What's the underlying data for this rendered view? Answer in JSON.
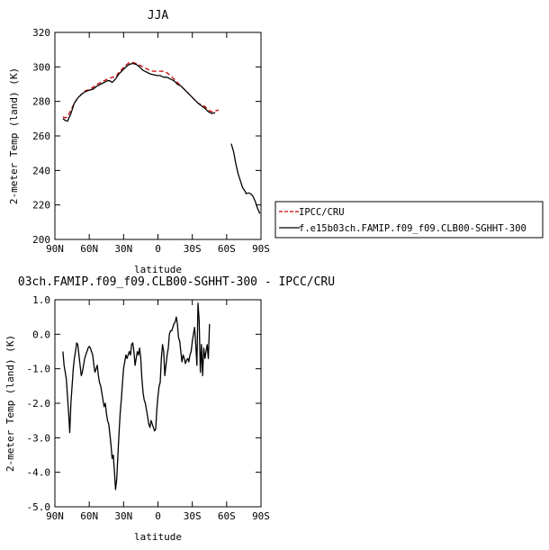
{
  "chart_data": [
    {
      "type": "line",
      "title": "JJA",
      "xlabel": "latitude",
      "ylabel": "2-meter Temp (land) (K)",
      "xlim": [
        90,
        -90
      ],
      "ylim": [
        200,
        320
      ],
      "x_ticks": [
        90,
        60,
        30,
        0,
        -30,
        -60,
        -90
      ],
      "x_tick_labels": [
        "90N",
        "60N",
        "30N",
        "0",
        "30S",
        "60S",
        "90S"
      ],
      "y_ticks": [
        200,
        220,
        240,
        260,
        280,
        300,
        320
      ],
      "y_tick_labels": [
        "200",
        "220",
        "240",
        "260",
        "280",
        "300",
        "320"
      ],
      "legend_position": "right",
      "series": [
        {
          "name": "IPCC/CRU",
          "color": "#cc0000",
          "dash": true,
          "points": [
            [
              83,
              271
            ],
            [
              81,
              270.5
            ],
            [
              79,
              271
            ],
            [
              76,
              275
            ],
            [
              73,
              279
            ],
            [
              70,
              282
            ],
            [
              67,
              284
            ],
            [
              64,
              286
            ],
            [
              60,
              287
            ],
            [
              57,
              288
            ],
            [
              53,
              290
            ],
            [
              50,
              291
            ],
            [
              47,
              292
            ],
            [
              44,
              293
            ],
            [
              40,
              294
            ],
            [
              37,
              294
            ],
            [
              34,
              297
            ],
            [
              31,
              299
            ],
            [
              28,
              301
            ],
            [
              25,
              302.5
            ],
            [
              22,
              302.5
            ],
            [
              19,
              302
            ],
            [
              16,
              301
            ],
            [
              13,
              300
            ],
            [
              10,
              299
            ],
            [
              7,
              298
            ],
            [
              4,
              297.5
            ],
            [
              1,
              297.5
            ],
            [
              -2,
              297.5
            ],
            [
              -5,
              297.5
            ],
            [
              -8,
              296.5
            ],
            [
              -11,
              295
            ],
            [
              -14,
              293
            ],
            [
              -17,
              291
            ],
            [
              -20,
              289
            ],
            [
              -23,
              287
            ],
            [
              -26,
              285
            ],
            [
              -29,
              283
            ],
            [
              -32,
              281
            ],
            [
              -35,
              279
            ],
            [
              -38,
              278
            ],
            [
              -41,
              277
            ],
            [
              -44,
              275
            ],
            [
              -47,
              274
            ],
            [
              -50,
              274.5
            ],
            [
              -53,
              275
            ]
          ]
        },
        {
          "name": "f.e15b03ch.FAMIP.f09_f09.CLB00-SGHHT-300",
          "color": "#000000",
          "dash": false,
          "points": [
            [
              83,
              270
            ],
            [
              81,
              269
            ],
            [
              79,
              268.5
            ],
            [
              76,
              273
            ],
            [
              73,
              279
            ],
            [
              70,
              282
            ],
            [
              67,
              284
            ],
            [
              64,
              285.5
            ],
            [
              60,
              286.5
            ],
            [
              57,
              287
            ],
            [
              53,
              289
            ],
            [
              50,
              290
            ],
            [
              47,
              291
            ],
            [
              44,
              292
            ],
            [
              42,
              292
            ],
            [
              40,
              291
            ],
            [
              37,
              293
            ],
            [
              34,
              296
            ],
            [
              31,
              298
            ],
            [
              28,
              300
            ],
            [
              25,
              301.5
            ],
            [
              22,
              302
            ],
            [
              19,
              301.5
            ],
            [
              16,
              300
            ],
            [
              13,
              298
            ],
            [
              10,
              297
            ],
            [
              7,
              296
            ],
            [
              4,
              295.5
            ],
            [
              1,
              295
            ],
            [
              -2,
              295
            ],
            [
              -5,
              294
            ],
            [
              -8,
              294
            ],
            [
              -11,
              293
            ],
            [
              -14,
              292
            ],
            [
              -17,
              290
            ],
            [
              -20,
              289
            ],
            [
              -23,
              287
            ],
            [
              -26,
              285
            ],
            [
              -29,
              283
            ],
            [
              -32,
              281
            ],
            [
              -35,
              279
            ],
            [
              -38,
              277.5
            ],
            [
              -41,
              276
            ],
            [
              -44,
              274
            ],
            [
              -47,
              273
            ],
            [
              -50,
              273.5
            ],
            [
              null,
              null
            ],
            [
              -64,
              255.5
            ],
            [
              -66,
              251
            ],
            [
              -68,
              244
            ],
            [
              -70,
              238
            ],
            [
              -72,
              234
            ],
            [
              -74,
              230
            ],
            [
              -76,
              228
            ],
            [
              -77,
              226.5
            ],
            [
              -79,
              227
            ],
            [
              -81,
              226.5
            ],
            [
              -83,
              225
            ],
            [
              -85,
              222
            ],
            [
              -87,
              218
            ],
            [
              -89,
              215
            ]
          ]
        }
      ]
    },
    {
      "type": "line",
      "title": "03ch.FAMIP.f09_f09.CLB00-SGHHT-300 - IPCC/CRU",
      "xlabel": "latitude",
      "ylabel": "2-meter Temp (land) (K)",
      "xlim": [
        90,
        -90
      ],
      "ylim": [
        -5.0,
        1.0
      ],
      "x_ticks": [
        90,
        60,
        30,
        0,
        -30,
        -60,
        -90
      ],
      "x_tick_labels": [
        "90N",
        "60N",
        "30N",
        "0",
        "30S",
        "60S",
        "90S"
      ],
      "y_ticks": [
        -5.0,
        -4.0,
        -3.0,
        -2.0,
        -1.0,
        0.0,
        1.0
      ],
      "y_tick_labels": [
        "-5.0",
        "-4.0",
        "-3.0",
        "-2.0",
        "-1.0",
        "0.0",
        "1.0"
      ],
      "series": [
        {
          "color": "#000000",
          "points": [
            [
              83,
              -0.5
            ],
            [
              82,
              -0.9
            ],
            [
              81,
              -1.1
            ],
            [
              80,
              -1.3
            ],
            [
              79,
              -1.8
            ],
            [
              78,
              -2.3
            ],
            [
              77,
              -2.85
            ],
            [
              76,
              -2.0
            ],
            [
              75,
              -1.5
            ],
            [
              74,
              -1.0
            ],
            [
              73,
              -0.7
            ],
            [
              72,
              -0.5
            ],
            [
              71,
              -0.25
            ],
            [
              70,
              -0.3
            ],
            [
              69,
              -0.6
            ],
            [
              68,
              -0.9
            ],
            [
              67,
              -1.2
            ],
            [
              66,
              -1.1
            ],
            [
              65,
              -0.9
            ],
            [
              64,
              -0.7
            ],
            [
              63,
              -0.6
            ],
            [
              62,
              -0.5
            ],
            [
              61,
              -0.4
            ],
            [
              60,
              -0.35
            ],
            [
              59,
              -0.4
            ],
            [
              58,
              -0.5
            ],
            [
              57,
              -0.6
            ],
            [
              56,
              -0.9
            ],
            [
              55,
              -1.1
            ],
            [
              54,
              -1.0
            ],
            [
              53,
              -0.9
            ],
            [
              52,
              -1.2
            ],
            [
              51,
              -1.4
            ],
            [
              50,
              -1.5
            ],
            [
              49,
              -1.7
            ],
            [
              48,
              -1.9
            ],
            [
              47,
              -2.1
            ],
            [
              46,
              -2.0
            ],
            [
              45,
              -2.3
            ],
            [
              44,
              -2.5
            ],
            [
              43,
              -2.6
            ],
            [
              42,
              -2.9
            ],
            [
              41,
              -3.2
            ],
            [
              40,
              -3.6
            ],
            [
              39,
              -3.5
            ],
            [
              38,
              -4.0
            ],
            [
              37,
              -4.5
            ],
            [
              36,
              -4.2
            ],
            [
              35,
              -3.5
            ],
            [
              34,
              -2.9
            ],
            [
              33,
              -2.3
            ],
            [
              32,
              -1.9
            ],
            [
              31,
              -1.4
            ],
            [
              30,
              -1.0
            ],
            [
              29,
              -0.8
            ],
            [
              28,
              -0.6
            ],
            [
              27,
              -0.7
            ],
            [
              26,
              -0.6
            ],
            [
              25,
              -0.5
            ],
            [
              24,
              -0.6
            ],
            [
              23,
              -0.3
            ],
            [
              22,
              -0.25
            ],
            [
              21,
              -0.5
            ],
            [
              20,
              -0.9
            ],
            [
              19,
              -0.7
            ],
            [
              18,
              -0.5
            ],
            [
              17,
              -0.6
            ],
            [
              16,
              -0.4
            ],
            [
              15,
              -0.7
            ],
            [
              14,
              -1.3
            ],
            [
              13,
              -1.7
            ],
            [
              12,
              -1.9
            ],
            [
              11,
              -2.0
            ],
            [
              10,
              -2.2
            ],
            [
              9,
              -2.4
            ],
            [
              8,
              -2.6
            ],
            [
              7,
              -2.7
            ],
            [
              6,
              -2.5
            ],
            [
              5,
              -2.6
            ],
            [
              4,
              -2.7
            ],
            [
              3,
              -2.8
            ],
            [
              2,
              -2.75
            ],
            [
              1,
              -2.2
            ],
            [
              0,
              -1.8
            ],
            [
              -1,
              -1.5
            ],
            [
              -2,
              -1.4
            ],
            [
              -3,
              -0.7
            ],
            [
              -4,
              -0.3
            ],
            [
              -5,
              -0.5
            ],
            [
              -6,
              -1.2
            ],
            [
              -7,
              -0.9
            ],
            [
              -8,
              -0.6
            ],
            [
              -9,
              -0.4
            ],
            [
              -10,
              0.0
            ],
            [
              -11,
              0.1
            ],
            [
              -12,
              0.1
            ],
            [
              -13,
              0.2
            ],
            [
              -14,
              0.3
            ],
            [
              -15,
              0.35
            ],
            [
              -16,
              0.5
            ],
            [
              -17,
              0.3
            ],
            [
              -18,
              -0.1
            ],
            [
              -19,
              -0.2
            ],
            [
              -20,
              -0.5
            ],
            [
              -21,
              -0.8
            ],
            [
              -22,
              -0.6
            ],
            [
              -23,
              -0.7
            ],
            [
              -24,
              -0.85
            ],
            [
              -25,
              -0.75
            ],
            [
              -26,
              -0.7
            ],
            [
              -27,
              -0.8
            ],
            [
              -28,
              -0.6
            ],
            [
              -29,
              -0.5
            ],
            [
              -30,
              -0.2
            ],
            [
              -31,
              0.0
            ],
            [
              -32,
              0.2
            ],
            [
              -33,
              -0.3
            ],
            [
              -34,
              -0.9
            ],
            [
              -35,
              0.9
            ],
            [
              -36,
              0.4
            ],
            [
              -37,
              -1.1
            ],
            [
              -38,
              -0.3
            ],
            [
              -39,
              -1.2
            ],
            [
              -40,
              -0.4
            ],
            [
              -41,
              -0.7
            ],
            [
              -42,
              -0.5
            ],
            [
              -43,
              -0.3
            ],
            [
              -44,
              -0.7
            ],
            [
              -45,
              0.3
            ]
          ]
        }
      ]
    }
  ]
}
